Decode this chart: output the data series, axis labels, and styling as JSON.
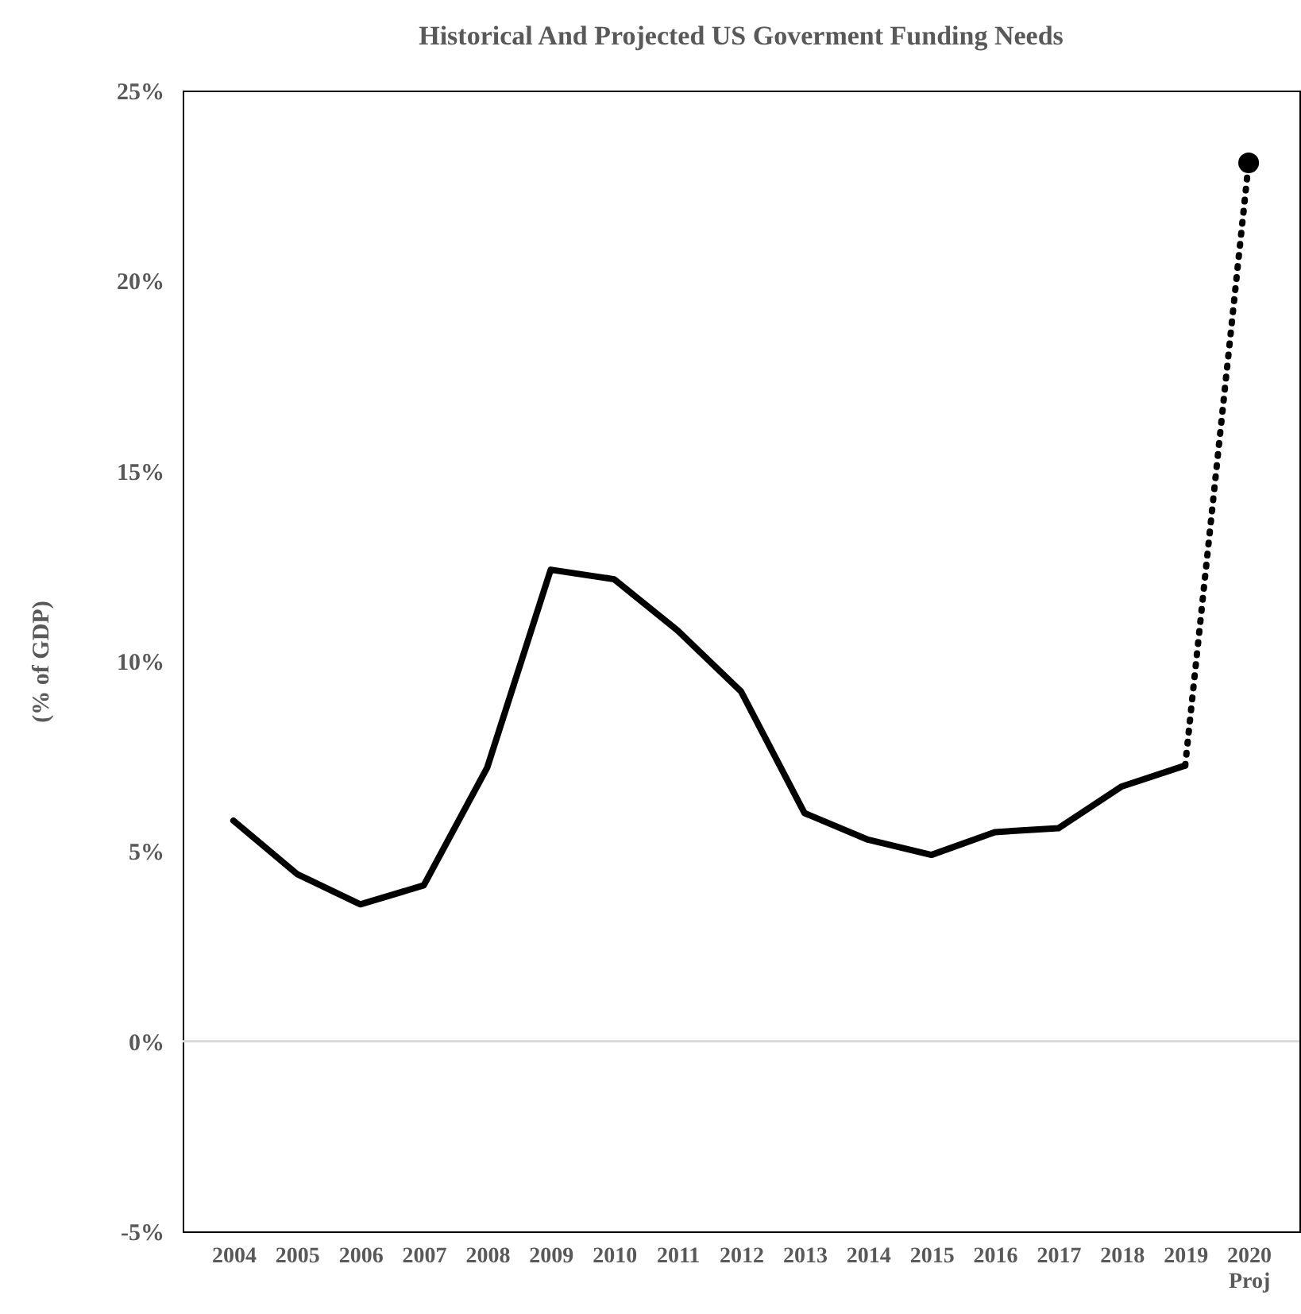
{
  "chart_data": {
    "type": "line",
    "title": "Historical And Projected US Goverment Funding Needs",
    "ylabel": "(% of GDP)",
    "categories": [
      "2004",
      "2005",
      "2006",
      "2007",
      "2008",
      "2009",
      "2010",
      "2011",
      "2012",
      "2013",
      "2014",
      "2015",
      "2016",
      "2017",
      "2018",
      "2019",
      "2020\nProj"
    ],
    "series": [
      {
        "type": "line",
        "color": "#000000",
        "line_style": "solid",
        "marker": "none",
        "values": [
          5.8,
          4.4,
          3.6,
          4.1,
          7.2,
          12.4,
          12.15,
          10.8,
          9.2,
          6.0,
          5.3,
          4.9,
          5.5,
          5.6,
          6.7,
          7.25,
          null
        ]
      },
      {
        "type": "line",
        "color": "#000000",
        "line_style": "dotted",
        "marker": "none",
        "values": [
          null,
          null,
          null,
          null,
          null,
          null,
          null,
          null,
          null,
          null,
          null,
          null,
          null,
          null,
          null,
          7.25,
          23.1
        ]
      },
      {
        "type": "scatter",
        "color": "#000000",
        "marker": "circle",
        "values": [
          null,
          null,
          null,
          null,
          null,
          null,
          null,
          null,
          null,
          null,
          null,
          null,
          null,
          null,
          null,
          null,
          23.1
        ]
      }
    ],
    "ylim": [
      -5,
      25
    ],
    "yticks": [
      {
        "value": -5,
        "label": "-5%"
      },
      {
        "value": 0,
        "label": "0%"
      },
      {
        "value": 5,
        "label": "5%"
      },
      {
        "value": 10,
        "label": "10%"
      },
      {
        "value": 15,
        "label": "15%"
      },
      {
        "value": 20,
        "label": "20%"
      },
      {
        "value": 25,
        "label": "25%"
      }
    ],
    "ref_lines": [
      {
        "axis": "y",
        "value": 0,
        "color": "#d9d9d9"
      }
    ],
    "grid": false
  }
}
